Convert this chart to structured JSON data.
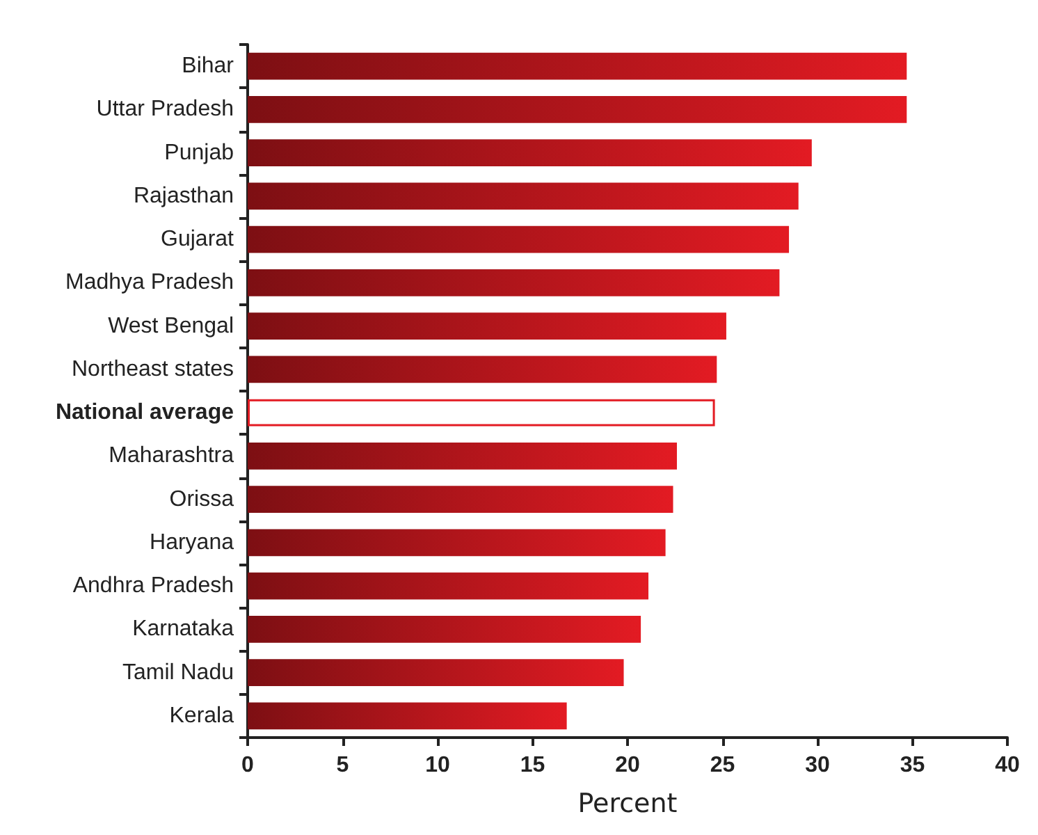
{
  "chart_data": {
    "type": "bar",
    "orientation": "horizontal",
    "xlabel": "Percent",
    "categories": [
      "Bihar",
      "Uttar Pradesh",
      "Punjab",
      "Rajasthan",
      "Gujarat",
      "Madhya Pradesh",
      "West Bengal",
      "Northeast states",
      "National average",
      "Maharashtra",
      "Orissa",
      "Haryana",
      "Andhra Pradesh",
      "Karnataka",
      "Tamil Nadu",
      "Kerala"
    ],
    "values": [
      34.7,
      34.7,
      29.7,
      29.0,
      28.5,
      28.0,
      25.2,
      24.7,
      24.6,
      22.6,
      22.4,
      22.0,
      21.1,
      20.7,
      19.8,
      16.8
    ],
    "color": "#e31b23",
    "colors": [
      "#e31b23",
      "#e31b23",
      "#e31b23",
      "#e31b23",
      "#e31b23",
      "#e31b23",
      "#e31b23",
      "#e31b23",
      "#ffffff",
      "#e31b23",
      "#e31b23",
      "#e31b23",
      "#e31b23",
      "#e31b23",
      "#e31b23",
      "#e31b23"
    ],
    "xlim": [
      0,
      40
    ],
    "xticks": [
      0,
      5,
      10,
      15,
      20,
      25,
      30,
      35,
      40
    ],
    "grid": false
  }
}
